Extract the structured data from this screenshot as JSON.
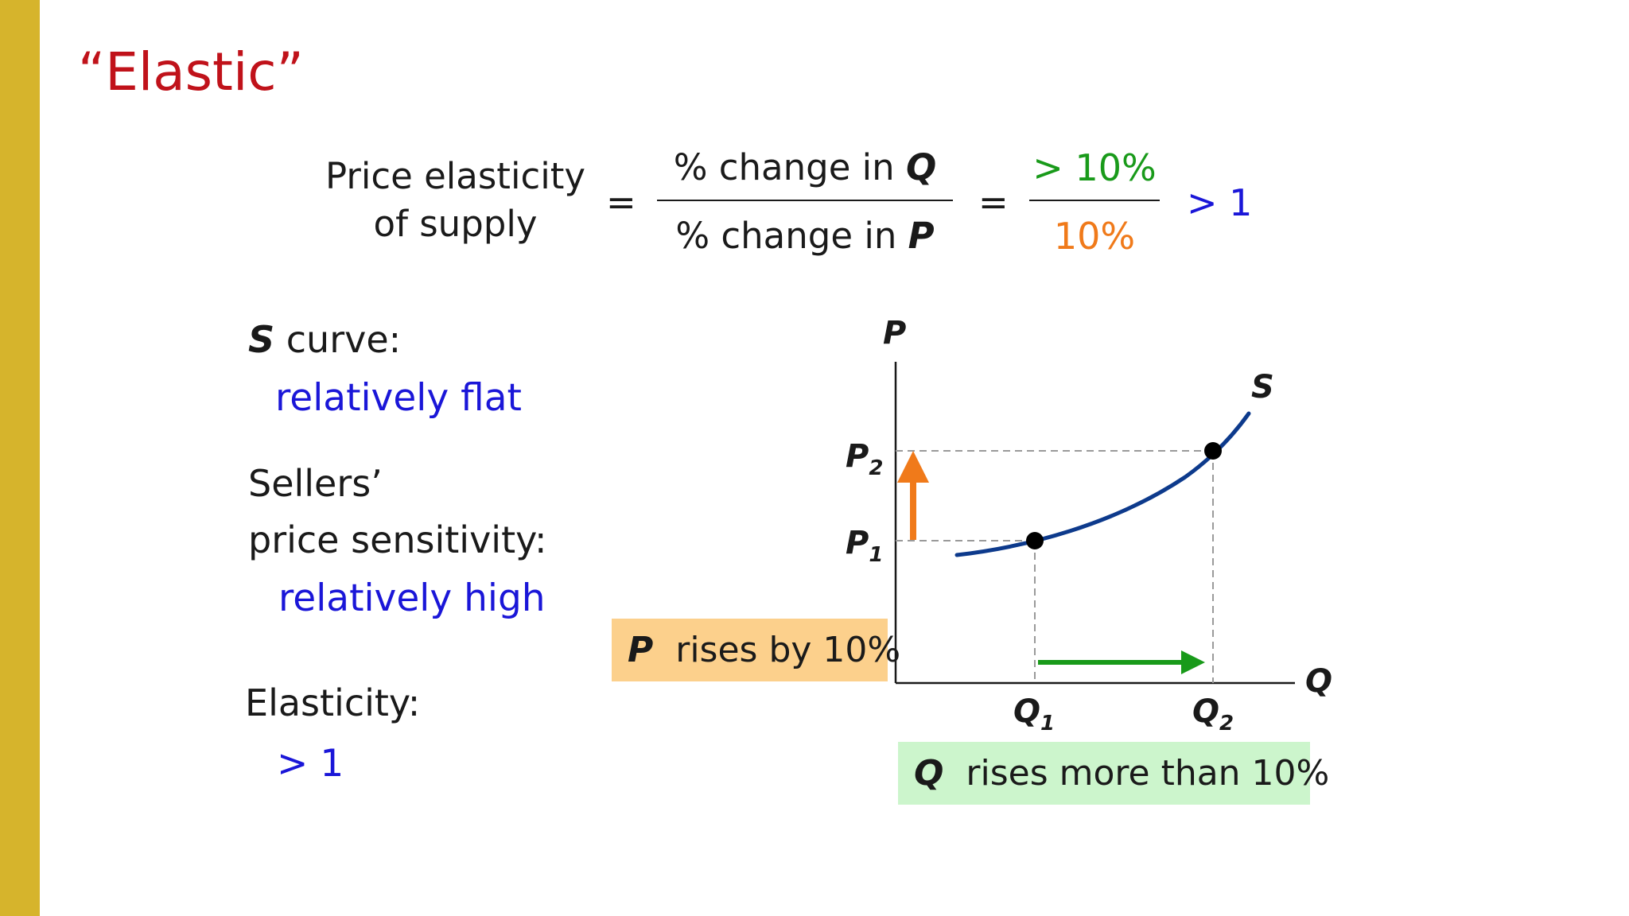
{
  "colors": {
    "sidebar": "#d6b42c",
    "title": "#c0121a",
    "blue": "#1a16d8",
    "green": "#199a1a",
    "orange": "#f07a1a",
    "curve": "#0d3a8c",
    "p_box": "#fcd08c",
    "q_box": "#ccf5cc"
  },
  "title": "“Elastic”",
  "formula": {
    "label_line1": "Price elasticity",
    "label_line2": "of supply",
    "equals1": "=",
    "numerator_prefix": "% change in ",
    "numerator_var": "Q",
    "denominator_prefix": "% change in ",
    "denominator_var": "P",
    "equals2": "=",
    "num_value": "> 10%",
    "den_value": "10%",
    "result": "> 1"
  },
  "left_panel": {
    "s_var": "S",
    "s_curve_label": " curve:",
    "s_curve_value": "relatively flat",
    "sellers_line1": "Sellers’",
    "sellers_line2": "price sensitivity:",
    "sensitivity_value": "relatively high",
    "elasticity_label": "Elasticity:",
    "elasticity_value": "> 1"
  },
  "p_box": {
    "var": "P",
    "text": "rises by 10%"
  },
  "q_box": {
    "var": "Q",
    "text": "rises more than 10%"
  },
  "chart_data": {
    "type": "line",
    "xlabel": "Q",
    "ylabel": "P",
    "series": [
      {
        "name": "S"
      }
    ],
    "points": [
      {
        "x_label": "Q",
        "x_sub": "1",
        "y_label": "P",
        "y_sub": "1"
      },
      {
        "x_label": "Q",
        "x_sub": "2",
        "y_label": "P",
        "y_sub": "2"
      }
    ],
    "annotations": [
      "P rises by 10%",
      "Q rises more than 10%"
    ]
  }
}
